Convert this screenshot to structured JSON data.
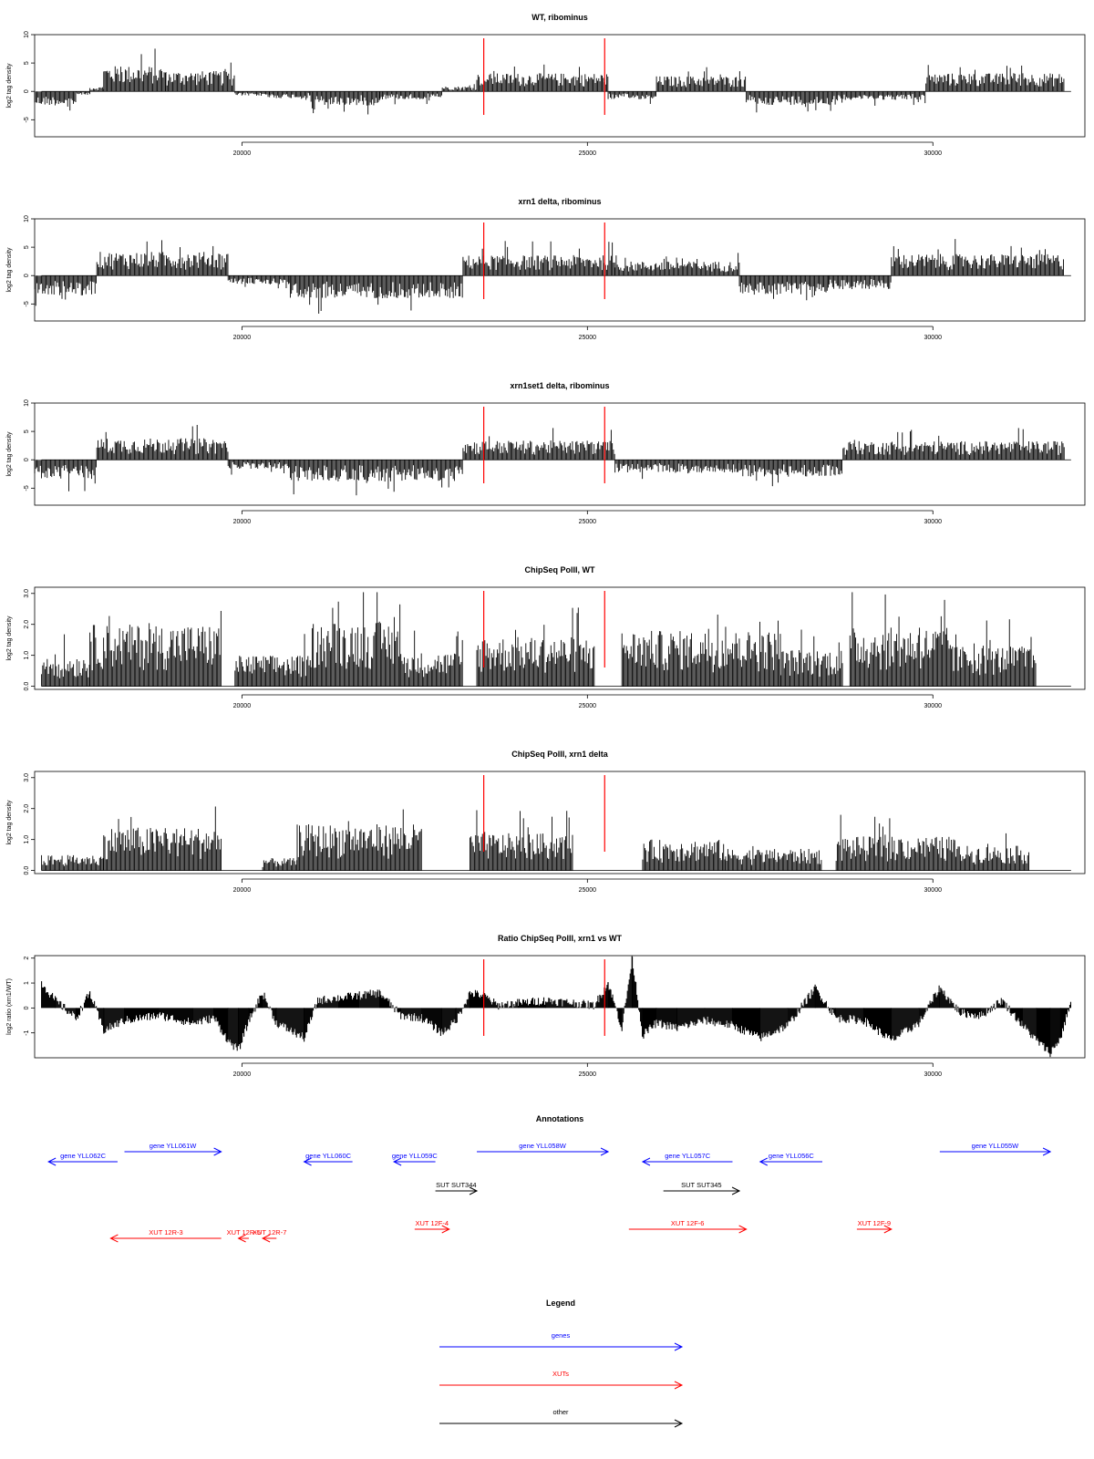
{
  "chart_data": [
    {
      "type": "bar",
      "title": "WT, ribominus",
      "ylabel": "log2 tag density",
      "ylim": [
        -8,
        10
      ],
      "yticks": [
        -5,
        0,
        5,
        10
      ],
      "ytick_labels": [
        "-5",
        "0",
        "5",
        "10"
      ],
      "xlim": [
        17000,
        32200
      ],
      "xticks": [
        20000,
        25000,
        30000
      ],
      "xtick_labels": [
        "20000",
        "25000",
        "30000"
      ],
      "marker_lines": [
        23500,
        25250
      ],
      "marker_color": "#ff0000",
      "grid": false,
      "segments": [
        {
          "start": 17000,
          "end": 17600,
          "sign": -1,
          "amp": 2.5
        },
        {
          "start": 17600,
          "end": 17800,
          "sign": -1,
          "amp": 0.6
        },
        {
          "start": 17800,
          "end": 18000,
          "sign": 1,
          "amp": 0.8
        },
        {
          "start": 18000,
          "end": 18900,
          "sign": 1,
          "amp": 4.5
        },
        {
          "start": 18900,
          "end": 19900,
          "sign": 1,
          "amp": 3.6
        },
        {
          "start": 19900,
          "end": 20400,
          "sign": -1,
          "amp": 0.8
        },
        {
          "start": 20400,
          "end": 21000,
          "sign": -1,
          "amp": 1.2
        },
        {
          "start": 21000,
          "end": 22000,
          "sign": -1,
          "amp": 2.5
        },
        {
          "start": 22000,
          "end": 22900,
          "sign": -1,
          "amp": 1.4
        },
        {
          "start": 22900,
          "end": 23400,
          "sign": 1,
          "amp": 0.9
        },
        {
          "start": 23400,
          "end": 25300,
          "sign": 1,
          "amp": 3.2
        },
        {
          "start": 25300,
          "end": 26000,
          "sign": -1,
          "amp": 1.4
        },
        {
          "start": 26000,
          "end": 27300,
          "sign": 1,
          "amp": 2.7
        },
        {
          "start": 27300,
          "end": 28700,
          "sign": -1,
          "amp": 2.4
        },
        {
          "start": 28700,
          "end": 29900,
          "sign": -1,
          "amp": 1.5
        },
        {
          "start": 29900,
          "end": 31900,
          "sign": 1,
          "amp": 3.2
        }
      ]
    },
    {
      "type": "bar",
      "title": "xrn1 delta, ribominus",
      "ylabel": "log2 tag density",
      "ylim": [
        -8,
        10
      ],
      "yticks": [
        -5,
        0,
        5,
        10
      ],
      "ytick_labels": [
        "-5",
        "0",
        "5",
        "10"
      ],
      "xlim": [
        17000,
        32200
      ],
      "xticks": [
        20000,
        25000,
        30000
      ],
      "xtick_labels": [
        "20000",
        "25000",
        "30000"
      ],
      "marker_lines": [
        23500,
        25250
      ],
      "marker_color": "#ff0000",
      "grid": false,
      "segments": [
        {
          "start": 17000,
          "end": 17900,
          "sign": -1,
          "amp": 3.5
        },
        {
          "start": 17900,
          "end": 19800,
          "sign": 1,
          "amp": 4.2
        },
        {
          "start": 19800,
          "end": 20700,
          "sign": -1,
          "amp": 1.5
        },
        {
          "start": 20700,
          "end": 23200,
          "sign": -1,
          "amp": 4.0
        },
        {
          "start": 23200,
          "end": 25400,
          "sign": 1,
          "amp": 3.6
        },
        {
          "start": 25400,
          "end": 27200,
          "sign": 1,
          "amp": 2.5
        },
        {
          "start": 27200,
          "end": 28500,
          "sign": -1,
          "amp": 3.4
        },
        {
          "start": 28500,
          "end": 29400,
          "sign": -1,
          "amp": 2.4
        },
        {
          "start": 29400,
          "end": 31900,
          "sign": 1,
          "amp": 3.8
        }
      ]
    },
    {
      "type": "bar",
      "title": "xrn1set1 delta, ribominus",
      "ylabel": "log2 tag density",
      "ylim": [
        -8,
        10
      ],
      "yticks": [
        -5,
        0,
        5,
        10
      ],
      "ytick_labels": [
        "-5",
        "0",
        "5",
        "10"
      ],
      "xlim": [
        17000,
        32200
      ],
      "xticks": [
        20000,
        25000,
        30000
      ],
      "xtick_labels": [
        "20000",
        "25000",
        "30000"
      ],
      "marker_lines": [
        23500,
        25250
      ],
      "marker_color": "#ff0000",
      "grid": false,
      "segments": [
        {
          "start": 17000,
          "end": 17900,
          "sign": -1,
          "amp": 3.4
        },
        {
          "start": 17900,
          "end": 19800,
          "sign": 1,
          "amp": 3.8
        },
        {
          "start": 19800,
          "end": 20700,
          "sign": -1,
          "amp": 1.6
        },
        {
          "start": 20700,
          "end": 23200,
          "sign": -1,
          "amp": 3.8
        },
        {
          "start": 23200,
          "end": 25400,
          "sign": 1,
          "amp": 3.4
        },
        {
          "start": 25400,
          "end": 27200,
          "sign": -1,
          "amp": 2.3
        },
        {
          "start": 27200,
          "end": 28700,
          "sign": -1,
          "amp": 3.0
        },
        {
          "start": 28700,
          "end": 31900,
          "sign": 1,
          "amp": 3.3
        }
      ]
    },
    {
      "type": "bar",
      "title": "ChipSeq PolII, WT",
      "ylabel": "log2 tag density",
      "ylim": [
        -0.1,
        3.2
      ],
      "yticks": [
        0,
        1,
        2,
        3
      ],
      "ytick_labels": [
        "0.0",
        "1.0",
        "2.0",
        "3.0"
      ],
      "xlim": [
        17000,
        32200
      ],
      "xticks": [
        20000,
        25000,
        30000
      ],
      "xtick_labels": [
        "20000",
        "25000",
        "30000"
      ],
      "marker_lines": [
        23500,
        25250
      ],
      "marker_color": "#ff0000",
      "grid": false,
      "segments": [
        {
          "start": 17100,
          "end": 17800,
          "sign": 1,
          "amp": 1.0
        },
        {
          "start": 17800,
          "end": 19700,
          "sign": 1,
          "amp": 2.0
        },
        {
          "start": 19900,
          "end": 21000,
          "sign": 1,
          "amp": 1.0
        },
        {
          "start": 21000,
          "end": 22300,
          "sign": 1,
          "amp": 2.1
        },
        {
          "start": 22300,
          "end": 23200,
          "sign": 1,
          "amp": 1.1
        },
        {
          "start": 23400,
          "end": 25100,
          "sign": 1,
          "amp": 1.6
        },
        {
          "start": 25500,
          "end": 27800,
          "sign": 1,
          "amp": 1.8
        },
        {
          "start": 27800,
          "end": 28700,
          "sign": 1,
          "amp": 1.2
        },
        {
          "start": 28800,
          "end": 30300,
          "sign": 1,
          "amp": 1.9
        },
        {
          "start": 30300,
          "end": 31500,
          "sign": 1,
          "amp": 1.3
        }
      ]
    },
    {
      "type": "bar",
      "title": "ChipSeq PolII, xrn1 delta",
      "ylabel": "log2 tag density",
      "ylim": [
        -0.1,
        3.2
      ],
      "yticks": [
        0,
        1,
        2,
        3
      ],
      "ytick_labels": [
        "0.0",
        "1.0",
        "2.0",
        "3.0"
      ],
      "xlim": [
        17000,
        32200
      ],
      "xticks": [
        20000,
        25000,
        30000
      ],
      "xtick_labels": [
        "20000",
        "25000",
        "30000"
      ],
      "marker_lines": [
        23500,
        25250
      ],
      "marker_color": "#ff0000",
      "grid": false,
      "segments": [
        {
          "start": 17100,
          "end": 18000,
          "sign": 1,
          "amp": 0.5
        },
        {
          "start": 18000,
          "end": 19700,
          "sign": 1,
          "amp": 1.4
        },
        {
          "start": 20300,
          "end": 20800,
          "sign": 1,
          "amp": 0.4
        },
        {
          "start": 20800,
          "end": 22600,
          "sign": 1,
          "amp": 1.5
        },
        {
          "start": 23300,
          "end": 24800,
          "sign": 1,
          "amp": 1.2
        },
        {
          "start": 25800,
          "end": 27000,
          "sign": 1,
          "amp": 1.0
        },
        {
          "start": 27000,
          "end": 28400,
          "sign": 1,
          "amp": 0.7
        },
        {
          "start": 28600,
          "end": 30300,
          "sign": 1,
          "amp": 1.1
        },
        {
          "start": 30300,
          "end": 31400,
          "sign": 1,
          "amp": 0.8
        }
      ]
    },
    {
      "type": "area",
      "title": "Ratio ChipSeq PolII, xrn1 vs WT",
      "ylabel": "log2 ratio (xrn1/WT)",
      "ylim": [
        -2,
        2.1
      ],
      "yticks": [
        -1,
        0,
        1,
        2
      ],
      "ytick_labels": [
        "-1",
        "0",
        "1",
        "2"
      ],
      "xlim": [
        17000,
        32200
      ],
      "xticks": [
        20000,
        25000,
        30000
      ],
      "xtick_labels": [
        "20000",
        "25000",
        "30000"
      ],
      "marker_lines": [
        23500,
        25250
      ],
      "marker_color": "#ff0000",
      "grid": false,
      "x": [
        17100,
        17300,
        17600,
        17800,
        18000,
        18300,
        18800,
        19300,
        19600,
        19800,
        19950,
        20100,
        20300,
        20500,
        20900,
        21100,
        21400,
        21700,
        22000,
        22300,
        22600,
        22900,
        23100,
        23300,
        23500,
        23700,
        24000,
        24400,
        24800,
        25100,
        25300,
        25500,
        25650,
        25800,
        26000,
        26300,
        26700,
        27100,
        27500,
        27900,
        28300,
        28600,
        29000,
        29400,
        29800,
        30100,
        30400,
        30700,
        31000,
        31300,
        31500,
        31700,
        31850,
        32000
      ],
      "y": [
        1.0,
        0.3,
        -0.4,
        0.6,
        -0.9,
        -0.5,
        -0.3,
        -0.6,
        -0.4,
        -1.3,
        -1.7,
        -0.5,
        0.6,
        -0.6,
        -1.2,
        0.3,
        0.4,
        0.5,
        0.6,
        -0.3,
        -0.4,
        -1.0,
        -0.5,
        0.6,
        0.5,
        0.1,
        0.2,
        0.3,
        0.2,
        0.1,
        1.0,
        -0.8,
        2.0,
        -1.1,
        -0.6,
        -0.8,
        -0.5,
        -0.7,
        -1.2,
        -0.7,
        0.8,
        -0.4,
        -0.5,
        -1.3,
        -0.6,
        0.8,
        -0.2,
        -0.3,
        0.3,
        -0.7,
        -1.3,
        -1.8,
        -1.2,
        0.3
      ]
    }
  ],
  "annotations": {
    "title": "Annotations",
    "items": [
      {
        "label": "gene YLL062C",
        "start": 18200,
        "end": 17200,
        "row": 0,
        "color": "#0000ff"
      },
      {
        "label": "gene YLL061W",
        "start": 18300,
        "end": 19700,
        "row": -1,
        "color": "#0000ff"
      },
      {
        "label": "gene YLL060C",
        "start": 21600,
        "end": 20900,
        "row": 0,
        "color": "#0000ff"
      },
      {
        "label": "gene YLL059C",
        "start": 22800,
        "end": 22200,
        "row": 0,
        "color": "#0000ff"
      },
      {
        "label": "gene YLL058W",
        "start": 23400,
        "end": 25300,
        "row": -1,
        "color": "#0000ff"
      },
      {
        "label": "gene YLL057C",
        "start": 27100,
        "end": 25800,
        "row": 0,
        "color": "#0000ff"
      },
      {
        "label": "gene YLL056C",
        "start": 28400,
        "end": 27500,
        "row": 0,
        "color": "#0000ff"
      },
      {
        "label": "gene YLL055W",
        "start": 30100,
        "end": 31700,
        "row": -1,
        "color": "#0000ff"
      },
      {
        "label": "SUT SUT344",
        "start": 22800,
        "end": 23400,
        "row": 1,
        "color": "#000000"
      },
      {
        "label": "SUT SUT345",
        "start": 26100,
        "end": 27200,
        "row": 1,
        "color": "#000000"
      },
      {
        "label": "XUT 12R-3",
        "start": 19700,
        "end": 18100,
        "row": 3,
        "color": "#ff0000"
      },
      {
        "label": "XUT 12R-5",
        "start": 20100,
        "end": 19950,
        "row": 3,
        "color": "#ff0000"
      },
      {
        "label": "XUT 12R-7",
        "start": 20500,
        "end": 20300,
        "row": 3,
        "color": "#ff0000"
      },
      {
        "label": "XUT 12F-4",
        "start": 22500,
        "end": 23000,
        "row": 2,
        "color": "#ff0000"
      },
      {
        "label": "XUT 12F-6",
        "start": 25600,
        "end": 27300,
        "row": 2,
        "color": "#ff0000"
      },
      {
        "label": "XUT 12F-9",
        "start": 28900,
        "end": 29400,
        "row": 2,
        "color": "#ff0000"
      }
    ]
  },
  "legend": {
    "title": "Legend",
    "items": [
      {
        "label": "genes",
        "color": "#0000ff"
      },
      {
        "label": "XUTs",
        "color": "#ff0000"
      },
      {
        "label": "other",
        "color": "#000000"
      }
    ]
  }
}
